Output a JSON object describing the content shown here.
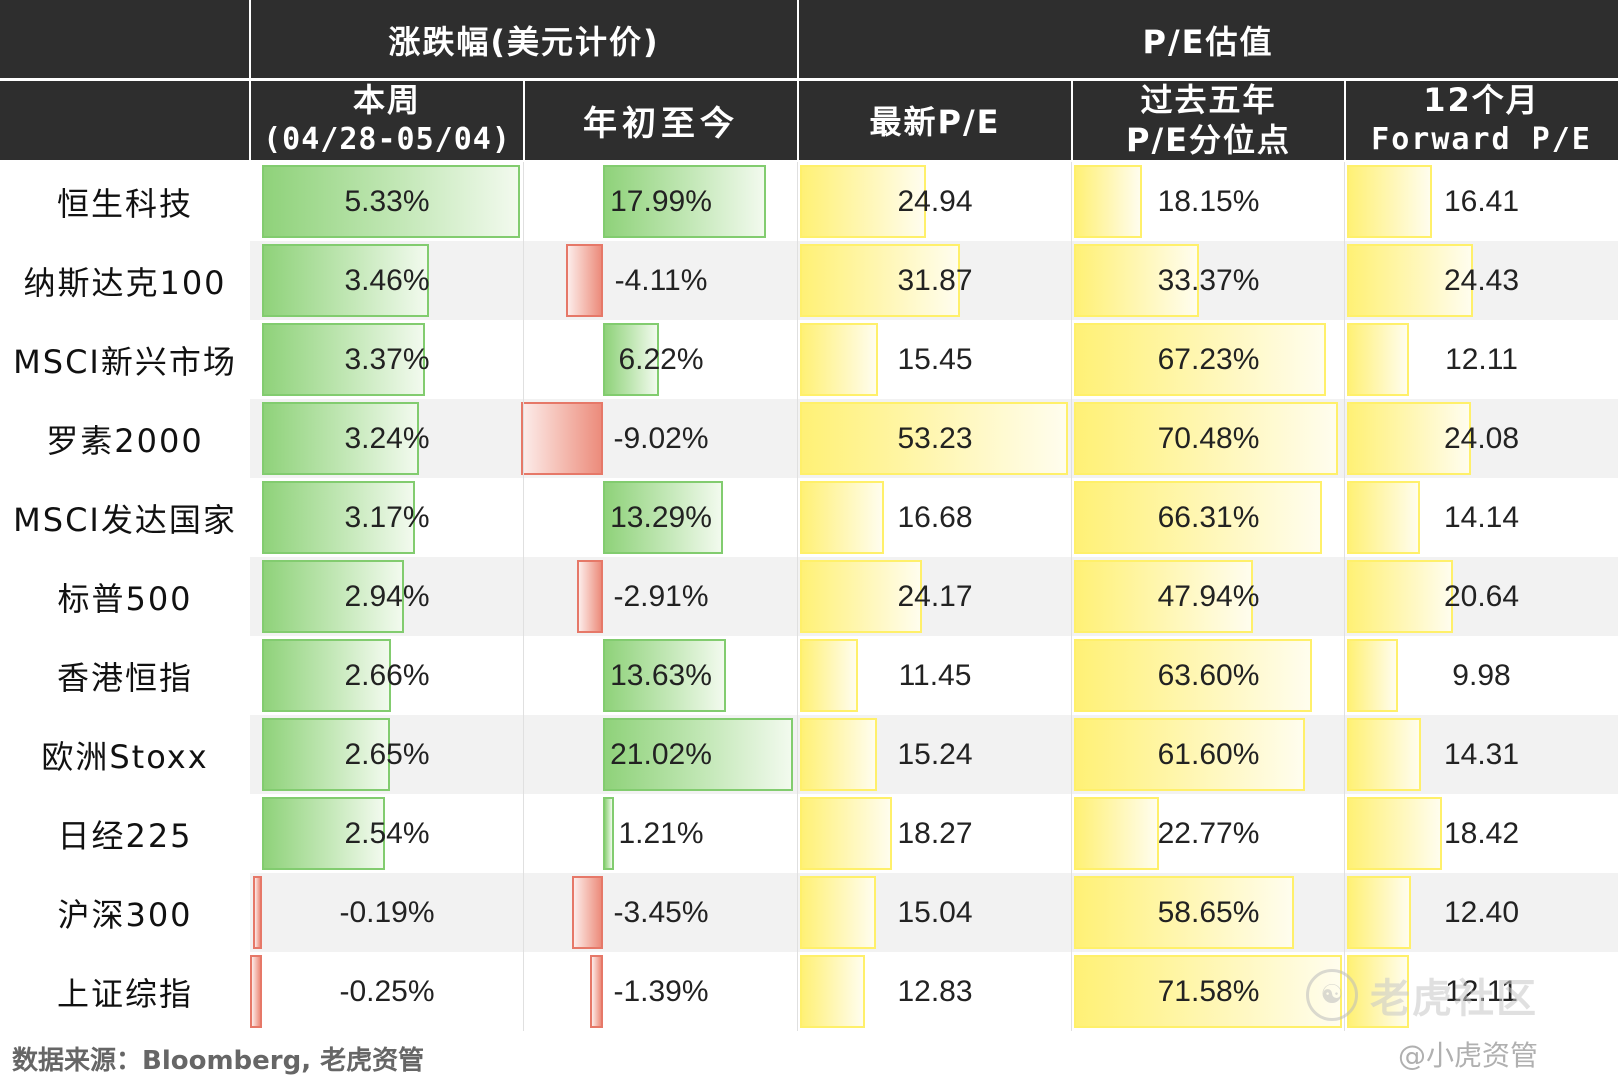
{
  "header": {
    "group_change": "涨跌幅(美元计价)",
    "group_pe": "P/E估值",
    "columns": [
      {
        "key": "week",
        "line1": "本周",
        "line2": "(04/28-05/04)"
      },
      {
        "key": "ytd",
        "line1": "年初至今",
        "line2": ""
      },
      {
        "key": "pe",
        "line1": "最新P/E",
        "line2": ""
      },
      {
        "key": "pct",
        "line1": "过去五年",
        "line2": "P/E分位点"
      },
      {
        "key": "fwd",
        "line1": "12个月",
        "line2": "Forward P/E"
      }
    ]
  },
  "chart_data": {
    "type": "table",
    "rows": [
      {
        "name": "恒生科技",
        "week": "5.33%",
        "ytd": "17.99%",
        "pe": "24.94",
        "pct": "18.15%",
        "fwd": "16.41"
      },
      {
        "name": "纳斯达克100",
        "week": "3.46%",
        "ytd": "-4.11%",
        "pe": "31.87",
        "pct": "33.37%",
        "fwd": "24.43"
      },
      {
        "name": "MSCI新兴市场",
        "week": "3.37%",
        "ytd": "6.22%",
        "pe": "15.45",
        "pct": "67.23%",
        "fwd": "12.11"
      },
      {
        "name": "罗素2000",
        "week": "3.24%",
        "ytd": "-9.02%",
        "pe": "53.23",
        "pct": "70.48%",
        "fwd": "24.08"
      },
      {
        "name": "MSCI发达国家",
        "week": "3.17%",
        "ytd": "13.29%",
        "pe": "16.68",
        "pct": "66.31%",
        "fwd": "14.14"
      },
      {
        "name": "标普500",
        "week": "2.94%",
        "ytd": "-2.91%",
        "pe": "24.17",
        "pct": "47.94%",
        "fwd": "20.64"
      },
      {
        "name": "香港恒指",
        "week": "2.66%",
        "ytd": "13.63%",
        "pe": "11.45",
        "pct": "63.60%",
        "fwd": "9.98"
      },
      {
        "name": "欧洲Stoxx",
        "week": "2.65%",
        "ytd": "21.02%",
        "pe": "15.24",
        "pct": "61.60%",
        "fwd": "14.31"
      },
      {
        "name": "日经225",
        "week": "2.54%",
        "ytd": "1.21%",
        "pe": "18.27",
        "pct": "22.77%",
        "fwd": "18.42"
      },
      {
        "name": "沪深300",
        "week": "-0.19%",
        "ytd": "-3.45%",
        "pe": "15.04",
        "pct": "58.65%",
        "fwd": "12.40"
      },
      {
        "name": "上证综指",
        "week": "-0.25%",
        "ytd": "-1.39%",
        "pe": "12.83",
        "pct": "71.58%",
        "fwd": "12.11"
      }
    ]
  },
  "colors": {
    "header_bg": "#2e2e2e",
    "positive_bar": "#8fd27a",
    "negative_bar": "#ec8c7c",
    "valuation_bar": "#fff176",
    "stripe": "#f2f2f2"
  },
  "source_note": "数据来源：Bloomberg, 老虎资管",
  "watermark": {
    "icon": "tiger-logo-icon",
    "text": "老虎社区",
    "handle": "@小虎资管"
  }
}
